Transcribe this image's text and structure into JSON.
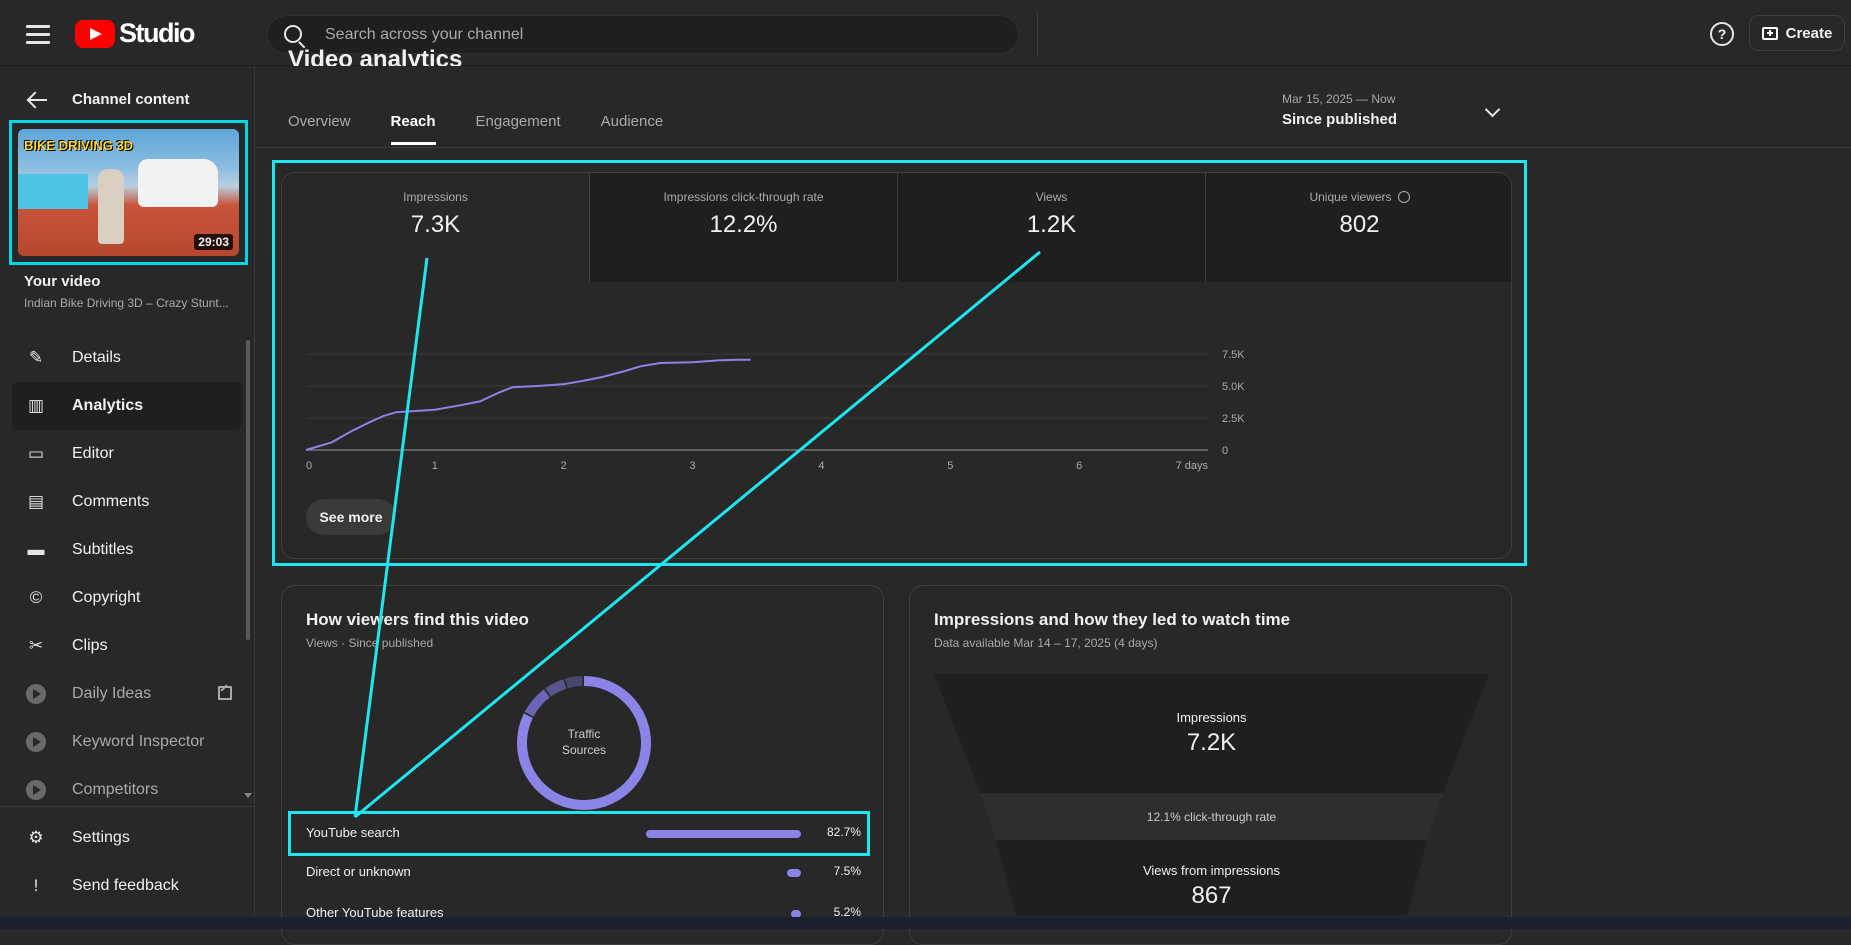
{
  "app": {
    "logo_text": "Studio"
  },
  "search": {
    "placeholder": "Search across your channel"
  },
  "topbar": {
    "help_symbol": "?",
    "create_label": "Create"
  },
  "sidebar": {
    "back_label": "Channel content",
    "thumbnail": {
      "title_text": "BIKE DRIVING 3D",
      "duration": "29:03"
    },
    "your_video_label": "Your video",
    "video_title": "Indian Bike Driving 3D – Crazy Stunt...",
    "items": [
      {
        "label": "Details",
        "icon": "pencil-icon",
        "glyph": "✎"
      },
      {
        "label": "Analytics",
        "icon": "analytics-icon",
        "glyph": "▥",
        "active": true
      },
      {
        "label": "Editor",
        "icon": "editor-icon",
        "glyph": "▭"
      },
      {
        "label": "Comments",
        "icon": "comments-icon",
        "glyph": "▤"
      },
      {
        "label": "Subtitles",
        "icon": "subtitles-icon",
        "glyph": "▬"
      },
      {
        "label": "Copyright",
        "icon": "copyright-icon",
        "glyph": "©"
      },
      {
        "label": "Clips",
        "icon": "scissors-icon",
        "glyph": "✂"
      },
      {
        "label": "Daily Ideas",
        "icon": "plugin-icon",
        "external": true
      },
      {
        "label": "Keyword Inspector",
        "icon": "plugin-icon"
      },
      {
        "label": "Competitors",
        "icon": "plugin-icon"
      }
    ],
    "bottom_items": [
      {
        "label": "Settings",
        "icon": "gear-icon",
        "glyph": "⚙"
      },
      {
        "label": "Send feedback",
        "icon": "feedback-icon",
        "glyph": "!"
      }
    ]
  },
  "main": {
    "page_title": "Video analytics",
    "tabs": [
      {
        "label": "Overview"
      },
      {
        "label": "Reach",
        "active": true
      },
      {
        "label": "Engagement"
      },
      {
        "label": "Audience"
      }
    ],
    "date_range": {
      "period": "Mar 15, 2025 — Now",
      "label": "Since published"
    },
    "metrics": [
      {
        "label": "Impressions",
        "value": "7.3K"
      },
      {
        "label": "Impressions click-through rate",
        "value": "12.2%"
      },
      {
        "label": "Views",
        "value": "1.2K"
      },
      {
        "label": "Unique viewers",
        "value": "802"
      }
    ],
    "see_more_label": "See more",
    "traffic": {
      "title": "How viewers find this video",
      "subtitle": "Views · Since published",
      "donut_label_line1": "Traffic",
      "donut_label_line2": "Sources",
      "rows": [
        {
          "label": "YouTube search",
          "pct": "82.7%",
          "value": 82.7
        },
        {
          "label": "Direct or unknown",
          "pct": "7.5%",
          "value": 7.5
        },
        {
          "label": "Other YouTube features",
          "pct": "5.2%",
          "value": 5.2
        }
      ]
    },
    "funnel": {
      "title": "Impressions and how they led to watch time",
      "subtitle": "Data available Mar 14 – 17, 2025 (4 days)",
      "impressions_label": "Impressions",
      "impressions_value": "7.2K",
      "ctr_text": "12.1% click-through rate",
      "views_label": "Views from impressions",
      "views_value": "867"
    }
  },
  "chart_data": {
    "type": "line",
    "title": "",
    "xlabel": "",
    "ylabel": "",
    "x_ticks": [
      "0",
      "1",
      "2",
      "3",
      "4",
      "5",
      "6",
      "7 days"
    ],
    "y_ticks": [
      "0",
      "2.5K",
      "5.0K",
      "7.5K"
    ],
    "xlim": [
      0,
      7
    ],
    "ylim": [
      0,
      7500
    ],
    "grid": true,
    "series": [
      {
        "color": "#8b83e6",
        "x": [
          0,
          0.2,
          0.35,
          0.5,
          0.6,
          0.7,
          0.85,
          1.0,
          1.2,
          1.35,
          1.5,
          1.6,
          1.8,
          2.0,
          2.15,
          2.3,
          2.45,
          2.6,
          2.75,
          3.0,
          3.2,
          3.35,
          3.45
        ],
        "y": [
          0,
          600,
          1450,
          2200,
          2650,
          2950,
          3050,
          3150,
          3500,
          3800,
          4500,
          4900,
          5000,
          5150,
          5400,
          5700,
          6100,
          6550,
          6800,
          6850,
          7000,
          7050,
          7050
        ]
      }
    ]
  },
  "colors": {
    "accent": "#8b83e6",
    "highlight": "#1ee6f0",
    "brand": "#ff0000"
  }
}
